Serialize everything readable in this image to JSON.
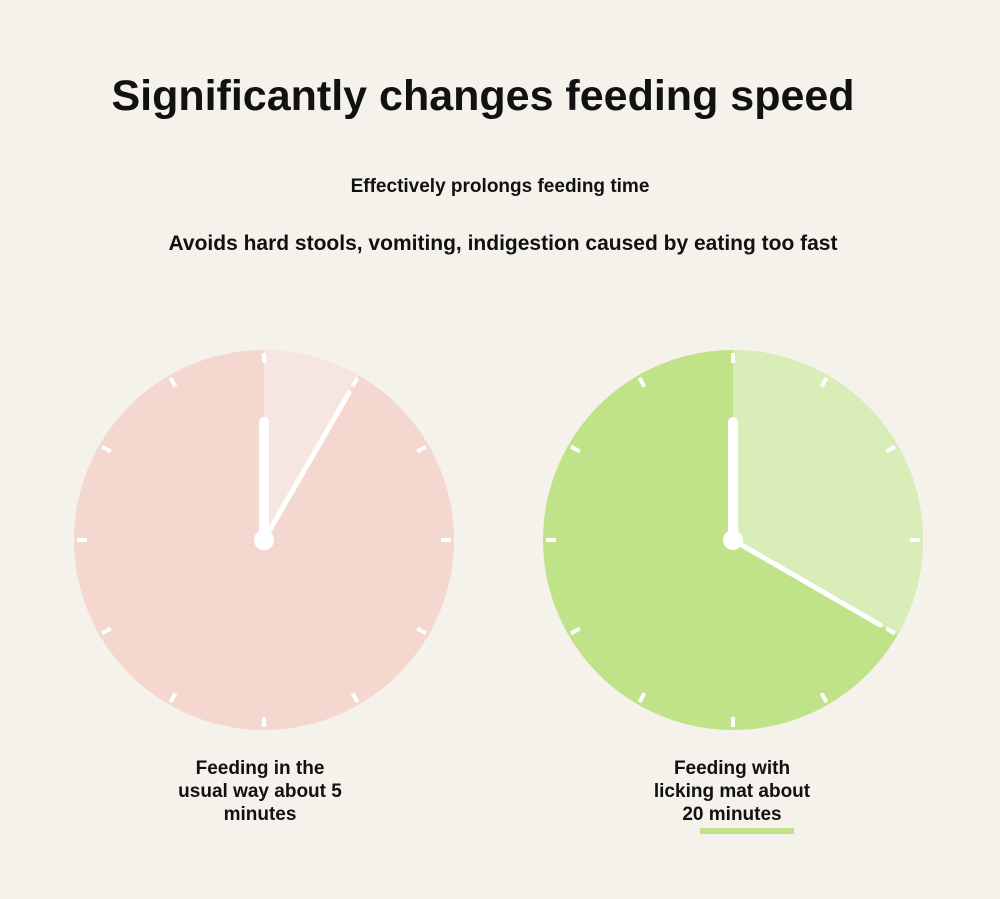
{
  "header": {
    "title": "Significantly changes feeding speed",
    "subtitle": "Effectively prolongs feeding time",
    "tagline": "Avoids hard stools, vomiting, indigestion caused by eating too fast"
  },
  "clocks": [
    {
      "caption_lines": [
        "Feeding in the",
        "usual way about 5",
        "minutes"
      ],
      "elapsed_minutes": 5,
      "face_color": "#f4d8cf",
      "highlight_color": "#f6e6e2"
    },
    {
      "caption_lines": [
        "Feeding with",
        "licking mat about",
        "20 minutes"
      ],
      "elapsed_minutes": 20,
      "face_color": "#c0e38a",
      "highlight_color": "#d8edb8"
    }
  ],
  "colors": {
    "background": "#f5f2eb",
    "hands": "#ffffff",
    "text": "#111111",
    "accent_underline": "#c0e38a"
  }
}
